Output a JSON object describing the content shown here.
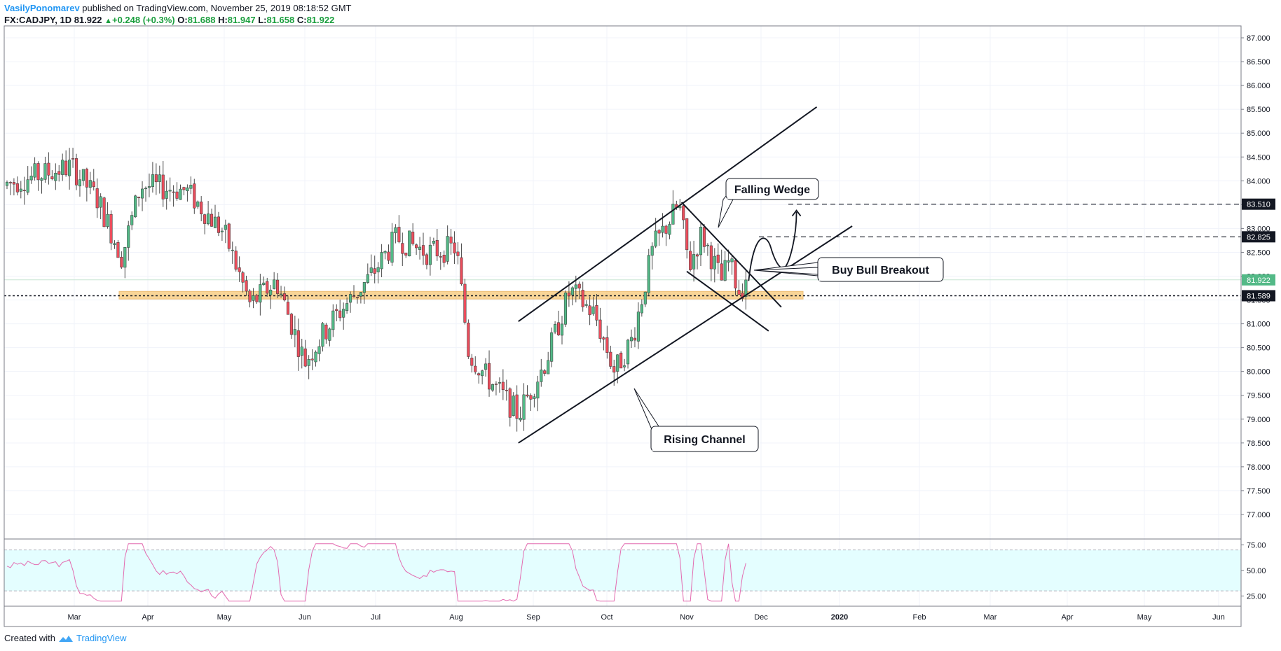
{
  "header": {
    "author": "VasilyPonomarev",
    "published": " published on TradingView.com, November 25, 2019 08:18:52 GMT",
    "symbol": "FX:CADJPY, 1D",
    "last": "81.922",
    "change": "+0.248 (+0.3%)",
    "open_label": "O:",
    "open": "81.688",
    "high_label": "H:",
    "high": "81.947",
    "low_label": "L:",
    "low": "81.658",
    "close_label": "C:",
    "close": "81.922"
  },
  "footer": {
    "created_with": "Created with",
    "brand": "TradingView"
  },
  "colors": {
    "bull": "#53b987",
    "bear": "#eb4d5c",
    "wick": "#4a4a4a",
    "rsi_line": "#e36bb0",
    "rsi_bg": "#e4feff",
    "zone": "#f7c46c",
    "last_price": "#53b987"
  },
  "chart_data": [
    {
      "type": "candlestick",
      "symbol": "FX:CADJPY",
      "interval": "1D",
      "ylim": [
        76.5,
        87.25
      ],
      "x_tick_labels": [
        "Mar",
        "Apr",
        "May",
        "Jun",
        "Jul",
        "Aug",
        "Sep",
        "Oct",
        "Nov",
        "Dec",
        "2020",
        "Feb",
        "Mar",
        "Apr",
        "May",
        "Jun"
      ],
      "y_tick_labels": [
        "87.000",
        "86.500",
        "86.000",
        "85.500",
        "85.000",
        "84.500",
        "84.000",
        "83.500",
        "83.000",
        "82.500",
        "82.000",
        "81.500",
        "81.000",
        "80.500",
        "80.000",
        "79.500",
        "79.000",
        "78.500",
        "78.000",
        "77.500",
        "77.000"
      ],
      "y_ticks": [
        87,
        86.5,
        86,
        85.5,
        85,
        84.5,
        84,
        83.5,
        83,
        82.5,
        82,
        81.5,
        81,
        80.5,
        80,
        79.5,
        79,
        78.5,
        78,
        77.5,
        77
      ],
      "price_labels": [
        {
          "value": 83.51,
          "text": "83.510",
          "style": "target"
        },
        {
          "value": 82.825,
          "text": "82.825",
          "style": "target"
        },
        {
          "value": 81.922,
          "text": "81.922",
          "style": "last"
        },
        {
          "value": 81.589,
          "text": "81.589",
          "style": "level"
        }
      ],
      "support_zone": [
        81.52,
        81.68
      ],
      "annotations": {
        "falling_wedge": "Falling Wedge",
        "buy_bull_breakout": "Buy Bull Breakout",
        "rising_channel": "Rising Channel"
      },
      "anchors": [
        {
          "month": "Feb",
          "day": 0,
          "price": 83.9
        },
        {
          "month": "Feb",
          "day": 27,
          "price": 84.3
        },
        {
          "month": "Mar",
          "day": 10,
          "price": 83.6
        },
        {
          "month": "Mar",
          "day": 20,
          "price": 82.4
        },
        {
          "month": "Mar",
          "day": 28,
          "price": 83.9
        },
        {
          "month": "Apr",
          "day": 15,
          "price": 83.8
        },
        {
          "month": "Apr",
          "day": 30,
          "price": 82.9
        },
        {
          "month": "May",
          "day": 10,
          "price": 81.4
        },
        {
          "month": "May",
          "day": 20,
          "price": 81.9
        },
        {
          "month": "Jun",
          "day": 0,
          "price": 80.2
        },
        {
          "month": "Jun",
          "day": 12,
          "price": 81.1
        },
        {
          "month": "Jun",
          "day": 28,
          "price": 82.0
        },
        {
          "month": "Jul",
          "day": 8,
          "price": 82.8
        },
        {
          "month": "Jul",
          "day": 20,
          "price": 82.5
        },
        {
          "month": "Jul",
          "day": 31,
          "price": 82.6
        },
        {
          "month": "Aug",
          "day": 5,
          "price": 80.4
        },
        {
          "month": "Aug",
          "day": 12,
          "price": 79.9
        },
        {
          "month": "Aug",
          "day": 25,
          "price": 79.1
        },
        {
          "month": "Sep",
          "day": 5,
          "price": 80.2
        },
        {
          "month": "Sep",
          "day": 15,
          "price": 81.7
        },
        {
          "month": "Sep",
          "day": 25,
          "price": 81.2
        },
        {
          "month": "Oct",
          "day": 3,
          "price": 80.0
        },
        {
          "month": "Oct",
          "day": 10,
          "price": 80.7
        },
        {
          "month": "Oct",
          "day": 18,
          "price": 82.6
        },
        {
          "month": "Oct",
          "day": 28,
          "price": 83.5
        },
        {
          "month": "Nov",
          "day": 1,
          "price": 82.2
        },
        {
          "month": "Nov",
          "day": 6,
          "price": 82.9
        },
        {
          "month": "Nov",
          "day": 14,
          "price": 81.9
        },
        {
          "month": "Nov",
          "day": 17,
          "price": 82.3
        },
        {
          "month": "Nov",
          "day": 21,
          "price": 81.7
        },
        {
          "month": "Nov",
          "day": 25,
          "price": 81.92
        }
      ],
      "lines": [
        {
          "kind": "channel-upper",
          "from": {
            "month": "Aug",
            "day": 25,
            "price": 81.05
          },
          "to": {
            "month": "Dec",
            "day": 22,
            "price": 85.55
          }
        },
        {
          "kind": "channel-lower",
          "from": {
            "month": "Aug",
            "day": 25,
            "price": 78.5
          },
          "to": {
            "month": "Jan",
            "day": 5,
            "price": 83.05
          }
        },
        {
          "kind": "wedge-upper",
          "from": {
            "month": "Oct",
            "day": 29,
            "price": 83.55
          },
          "to": {
            "month": "Dec",
            "day": 8,
            "price": 81.35
          }
        },
        {
          "kind": "wedge-lower",
          "from": {
            "month": "Nov",
            "day": 0,
            "price": 82.1
          },
          "to": {
            "month": "Dec",
            "day": 3,
            "price": 80.85
          }
        }
      ]
    },
    {
      "type": "line",
      "indicator": "RSI",
      "ylim": [
        15,
        80
      ],
      "y_ticks": [
        75,
        50,
        25
      ],
      "y_tick_labels": [
        "75.00",
        "50.00",
        "25.00"
      ],
      "band": [
        70,
        30
      ]
    }
  ]
}
